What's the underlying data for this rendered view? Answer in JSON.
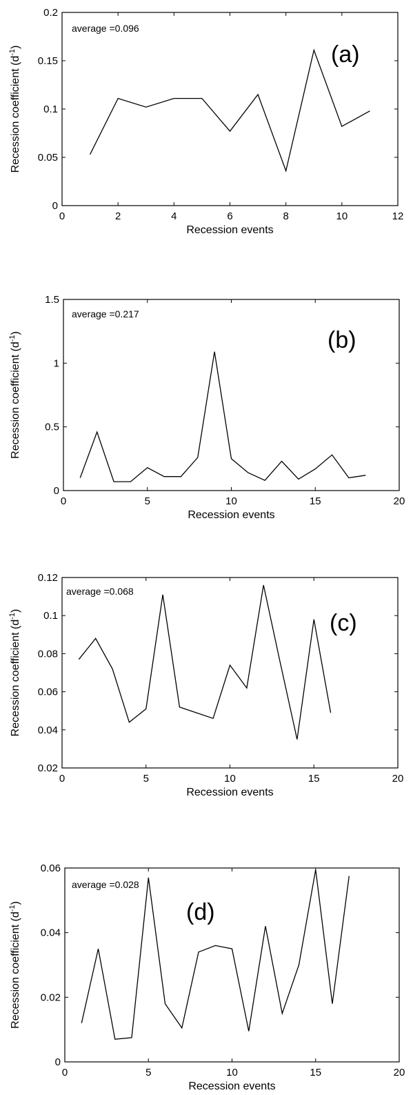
{
  "chart_data": [
    {
      "type": "line",
      "panel_label": "(a)",
      "annotation": "average =0.096",
      "xlabel": "Recession events",
      "ylabel": "Recession coefficient  (d",
      "ylabel_superscript": "-1",
      "ylabel_suffix": ")",
      "xlim": [
        0,
        12
      ],
      "ylim": [
        0,
        0.2
      ],
      "xticks": [
        0,
        2,
        4,
        6,
        8,
        10,
        12
      ],
      "yticks": [
        0,
        0.05,
        0.1,
        0.15,
        0.2
      ],
      "xtick_labels": [
        "0",
        "2",
        "4",
        "6",
        "8",
        "10",
        "12"
      ],
      "ytick_labels": [
        "0",
        "0.05",
        "0.1",
        "0.15",
        "0.2"
      ],
      "grid": false,
      "line_color": "#000000",
      "series": [
        {
          "x": [
            1,
            2,
            3,
            4,
            5,
            6,
            7,
            8,
            9,
            10,
            11
          ],
          "y": [
            0.053,
            0.111,
            0.102,
            0.111,
            0.111,
            0.077,
            0.115,
            0.036,
            0.161,
            0.082,
            0.098
          ]
        }
      ]
    },
    {
      "type": "line",
      "panel_label": "(b)",
      "annotation": "average =0.217",
      "xlabel": "Recession events",
      "ylabel": "Recession coefficient  (d",
      "ylabel_superscript": "-1",
      "ylabel_suffix": ")",
      "xlim": [
        0,
        20
      ],
      "ylim": [
        0,
        1.5
      ],
      "xticks": [
        0,
        5,
        10,
        15,
        20
      ],
      "yticks": [
        0,
        0.5,
        1,
        1.5
      ],
      "xtick_labels": [
        "0",
        "5",
        "10",
        "15",
        "20"
      ],
      "ytick_labels": [
        "0",
        "0.5",
        "1",
        "1.5"
      ],
      "grid": false,
      "line_color": "#000000",
      "series": [
        {
          "x": [
            1,
            2,
            3,
            4,
            5,
            6,
            7,
            8,
            9,
            10,
            11,
            12,
            13,
            14,
            15,
            16,
            17,
            18
          ],
          "y": [
            0.1,
            0.46,
            0.07,
            0.07,
            0.18,
            0.11,
            0.11,
            0.26,
            1.09,
            0.25,
            0.14,
            0.08,
            0.23,
            0.09,
            0.17,
            0.28,
            0.1,
            0.12
          ]
        }
      ]
    },
    {
      "type": "line",
      "panel_label": "(c)",
      "annotation": "average =0.068",
      "xlabel": "Recession events",
      "ylabel": "Recession coefficient  (d",
      "ylabel_superscript": "-1",
      "ylabel_suffix": ")",
      "xlim": [
        0,
        20
      ],
      "ylim": [
        0.02,
        0.12
      ],
      "xticks": [
        0,
        5,
        10,
        15,
        20
      ],
      "yticks": [
        0.02,
        0.04,
        0.06,
        0.08,
        0.1,
        0.12
      ],
      "xtick_labels": [
        "0",
        "5",
        "10",
        "15",
        "20"
      ],
      "ytick_labels": [
        "0.02",
        "0.04",
        "0.06",
        "0.08",
        "0.1",
        "0.12"
      ],
      "grid": false,
      "line_color": "#000000",
      "series": [
        {
          "x": [
            1,
            2,
            3,
            4,
            5,
            6,
            7,
            8,
            9,
            10,
            11,
            12,
            13,
            14,
            15,
            16
          ],
          "y": [
            0.077,
            0.088,
            0.072,
            0.044,
            0.051,
            0.111,
            0.052,
            0.049,
            0.046,
            0.074,
            0.062,
            0.116,
            0.075,
            0.035,
            0.098,
            0.049
          ]
        }
      ]
    },
    {
      "type": "line",
      "panel_label": "(d)",
      "annotation": "average =0.028",
      "xlabel": "Recession events",
      "ylabel": "Recession coefficient  (d",
      "ylabel_superscript": "-1",
      "ylabel_suffix": ")",
      "xlim": [
        0,
        20
      ],
      "ylim": [
        0,
        0.06
      ],
      "xticks": [
        0,
        5,
        10,
        15,
        20
      ],
      "yticks": [
        0,
        0.02,
        0.04,
        0.06
      ],
      "xtick_labels": [
        "0",
        "5",
        "10",
        "15",
        "20"
      ],
      "ytick_labels": [
        "0",
        "0.02",
        "0.04",
        "0.06"
      ],
      "grid": false,
      "line_color": "#000000",
      "series": [
        {
          "x": [
            1,
            2,
            3,
            4,
            5,
            6,
            7,
            8,
            9,
            10,
            11,
            12,
            13,
            14,
            15,
            16,
            17
          ],
          "y": [
            0.012,
            0.035,
            0.007,
            0.0075,
            0.057,
            0.018,
            0.0105,
            0.034,
            0.036,
            0.035,
            0.0095,
            0.042,
            0.015,
            0.03,
            0.0595,
            0.018,
            0.0575
          ]
        }
      ]
    }
  ]
}
